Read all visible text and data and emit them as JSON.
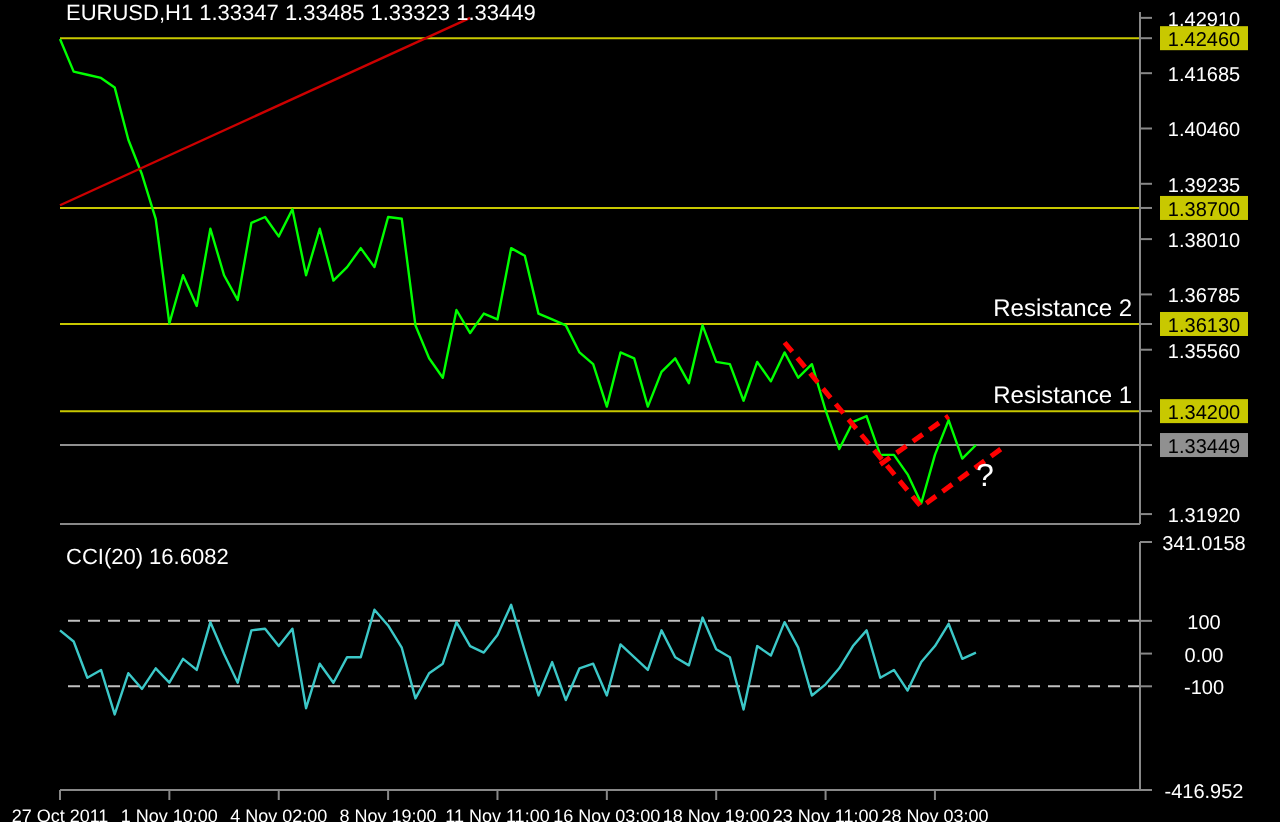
{
  "chart_data": [
    {
      "type": "line",
      "title": "EURUSD,H1 1.33347 1.33485 1.33323 1.33449",
      "tick_labels": "y",
      "marker": "none",
      "categories": [
        null,
        null,
        null,
        null,
        null,
        null,
        null,
        null,
        null,
        null,
        null,
        null,
        null,
        null,
        null,
        null,
        null,
        null,
        null,
        null,
        null,
        null,
        null,
        null,
        null,
        null,
        null,
        null,
        null,
        null,
        null,
        null,
        null,
        null,
        null,
        null,
        null,
        null,
        null,
        null,
        null,
        null,
        null,
        null,
        null,
        null,
        null,
        null,
        null,
        null,
        null,
        null,
        null,
        null,
        null,
        null,
        null,
        null,
        null,
        null,
        null,
        null,
        null,
        null,
        null,
        null,
        null,
        null,
        null,
        null,
        null,
        null,
        null,
        null,
        null,
        null,
        null,
        null,
        null,
        null
      ],
      "ylim": [
        1.317,
        1.4304
      ],
      "yticks": [
        {
          "value": 1.4291,
          "label": "1.42910"
        },
        {
          "value": 1.4246,
          "label": "1.42460"
        },
        {
          "value": 1.41685,
          "label": "1.41685"
        },
        {
          "value": 1.4046,
          "label": "1.40460"
        },
        {
          "value": 1.39235,
          "label": "1.39235"
        },
        {
          "value": 1.387,
          "label": "1.38700"
        },
        {
          "value": 1.3801,
          "label": "1.38010"
        },
        {
          "value": 1.36785,
          "label": "1.36785"
        },
        {
          "value": 1.3613,
          "label": "1.36130"
        },
        {
          "value": 1.3556,
          "label": "1.35560"
        },
        {
          "value": 1.342,
          "label": "1.34200"
        },
        {
          "value": 1.33449,
          "label": "1.33449"
        },
        {
          "value": 1.3192,
          "label": "1.31920"
        }
      ],
      "series": [
        {
          "color": "#00ff00",
          "values": [
            1.4244,
            1.4172,
            1.4165,
            1.4158,
            1.4137,
            1.4021,
            1.3944,
            1.3846,
            1.3614,
            1.3721,
            1.3653,
            1.3824,
            1.3721,
            1.3666,
            1.3837,
            1.385,
            1.3807,
            1.3867,
            1.3721,
            1.3824,
            1.3709,
            1.3739,
            1.3781,
            1.3739,
            1.385,
            1.3846,
            1.361,
            1.3537,
            1.3494,
            1.3644,
            1.3593,
            1.3636,
            1.3623,
            1.3781,
            1.3764,
            1.3636,
            1.3623,
            1.361,
            1.355,
            1.3524,
            1.343,
            1.355,
            1.3537,
            1.343,
            1.3507,
            1.3537,
            1.3482,
            1.361,
            1.3529,
            1.3524,
            1.3443,
            1.3529,
            1.3486,
            1.355,
            1.3494,
            1.3524,
            1.3422,
            1.3336,
            1.3396,
            1.3409,
            1.3323,
            1.3323,
            1.328,
            1.3216,
            1.3323,
            1.34,
            1.3315,
            1.3345,
            null,
            null,
            null,
            null,
            null,
            null,
            null,
            null,
            null,
            null,
            null,
            null
          ]
        },
        {
          "color": "#cc0000",
          "values": [
            1.3876,
            null,
            null,
            null,
            null,
            null,
            null,
            null,
            null,
            null,
            null,
            null,
            null,
            null,
            null,
            null,
            null,
            null,
            null,
            null,
            null,
            null,
            null,
            null,
            null,
            null,
            null,
            null,
            null,
            null,
            1.4291,
            null,
            null,
            null,
            null,
            null,
            null,
            null,
            null,
            null,
            null,
            null,
            null,
            null,
            null,
            null,
            null,
            null,
            null,
            null,
            null,
            null,
            null,
            null,
            null,
            null,
            null,
            null,
            null,
            null,
            null,
            null,
            null,
            null,
            null,
            null,
            null,
            null,
            null,
            null,
            null,
            null,
            null,
            null,
            null,
            null,
            null,
            null,
            null,
            null
          ]
        },
        {
          "color": "#ff0000",
          "line_style": "dashed",
          "values": [
            null,
            null,
            null,
            null,
            null,
            null,
            null,
            null,
            null,
            null,
            null,
            null,
            null,
            null,
            null,
            null,
            null,
            null,
            null,
            null,
            null,
            null,
            null,
            null,
            null,
            null,
            null,
            null,
            null,
            null,
            null,
            null,
            null,
            null,
            null,
            null,
            null,
            null,
            null,
            null,
            null,
            null,
            null,
            null,
            null,
            null,
            null,
            null,
            null,
            null,
            null,
            null,
            null,
            1.3572,
            null,
            null,
            null,
            null,
            null,
            null,
            null,
            null,
            null,
            1.3208,
            null,
            null,
            null,
            null,
            null,
            1.334,
            null,
            null,
            null,
            null,
            null,
            null,
            null,
            null,
            null,
            null
          ]
        },
        {
          "color": "#ff0000",
          "line_style": "dashed",
          "values": [
            null,
            null,
            null,
            null,
            null,
            null,
            null,
            null,
            null,
            null,
            null,
            null,
            null,
            null,
            null,
            null,
            null,
            null,
            null,
            null,
            null,
            null,
            null,
            null,
            null,
            null,
            null,
            null,
            null,
            null,
            null,
            null,
            null,
            null,
            null,
            null,
            null,
            null,
            null,
            null,
            null,
            null,
            null,
            null,
            null,
            null,
            null,
            null,
            null,
            null,
            null,
            null,
            null,
            null,
            null,
            null,
            null,
            null,
            null,
            null,
            1.3302,
            null,
            null,
            null,
            null,
            1.3409,
            null,
            null,
            null,
            null,
            null,
            null,
            null,
            null,
            null,
            null,
            null,
            null,
            null,
            null
          ]
        }
      ],
      "ref_lines": [
        {
          "axis": "y",
          "value": 1.4246,
          "color": "#c8c800"
        },
        {
          "axis": "y",
          "value": 1.387,
          "color": "#c8c800"
        },
        {
          "axis": "y",
          "value": 1.3613,
          "label": "Resistance 2",
          "color": "#c8c800"
        },
        {
          "axis": "y",
          "value": 1.342,
          "label": "Resistance 1",
          "color": "#c8c800"
        },
        {
          "axis": "y",
          "value": 1.33449,
          "color": "#909090"
        }
      ],
      "annotations": [
        "?"
      ]
    },
    {
      "type": "line",
      "title": "CCI(20) 16.6082",
      "marker": "none",
      "categories": [
        "27 Oct 2011",
        null,
        null,
        null,
        null,
        null,
        null,
        null,
        "1 Nov 10:00",
        null,
        null,
        null,
        null,
        null,
        null,
        null,
        "4 Nov 02:00",
        null,
        null,
        null,
        null,
        null,
        null,
        null,
        "8 Nov 19:00",
        null,
        null,
        null,
        null,
        null,
        null,
        null,
        "11 Nov 11:00",
        null,
        null,
        null,
        null,
        null,
        null,
        null,
        "16 Nov 03:00",
        null,
        null,
        null,
        null,
        null,
        null,
        null,
        "18 Nov 19:00",
        null,
        null,
        null,
        null,
        null,
        null,
        null,
        "23 Nov 11:00",
        null,
        null,
        null,
        null,
        null,
        null,
        null,
        "28 Nov 03:00",
        null,
        null,
        null,
        null,
        null,
        null,
        null,
        null,
        null,
        null,
        null,
        null,
        null,
        null,
        null
      ],
      "ylim": [
        -416.952,
        341.0158
      ],
      "yticks": [
        341.0158,
        100,
        {
          "value": 0,
          "label": "0.00"
        },
        -100,
        -416.952
      ],
      "series": [
        {
          "color": "#3cc8c8",
          "values": [
            71,
            37,
            -74,
            -50,
            -186,
            -60,
            -108,
            -45,
            -89,
            -16,
            -50,
            96,
            -1,
            -89,
            71,
            76,
            23,
            76,
            -167,
            -31,
            -89,
            -11,
            -11,
            134,
            86,
            18,
            -137,
            -60,
            -31,
            96,
            23,
            3,
            57,
            149,
            8,
            -128,
            -26,
            -142,
            -45,
            -31,
            -128,
            28,
            -11,
            -50,
            71,
            -11,
            -36,
            110,
            13,
            -11,
            -171,
            23,
            -6,
            96,
            18,
            -128,
            -94,
            -45,
            23,
            71,
            -74,
            -50,
            -113,
            -26,
            23,
            91,
            -16,
            3,
            null,
            null,
            null,
            null,
            null,
            null,
            null,
            null,
            null,
            null,
            null,
            null
          ]
        }
      ],
      "ref_lines": [
        {
          "axis": "y",
          "value": 100,
          "color": "#c0c0c0",
          "line_style": "dashed"
        },
        {
          "axis": "y",
          "value": -100,
          "color": "#c0c0c0",
          "line_style": "dashed"
        }
      ]
    }
  ]
}
